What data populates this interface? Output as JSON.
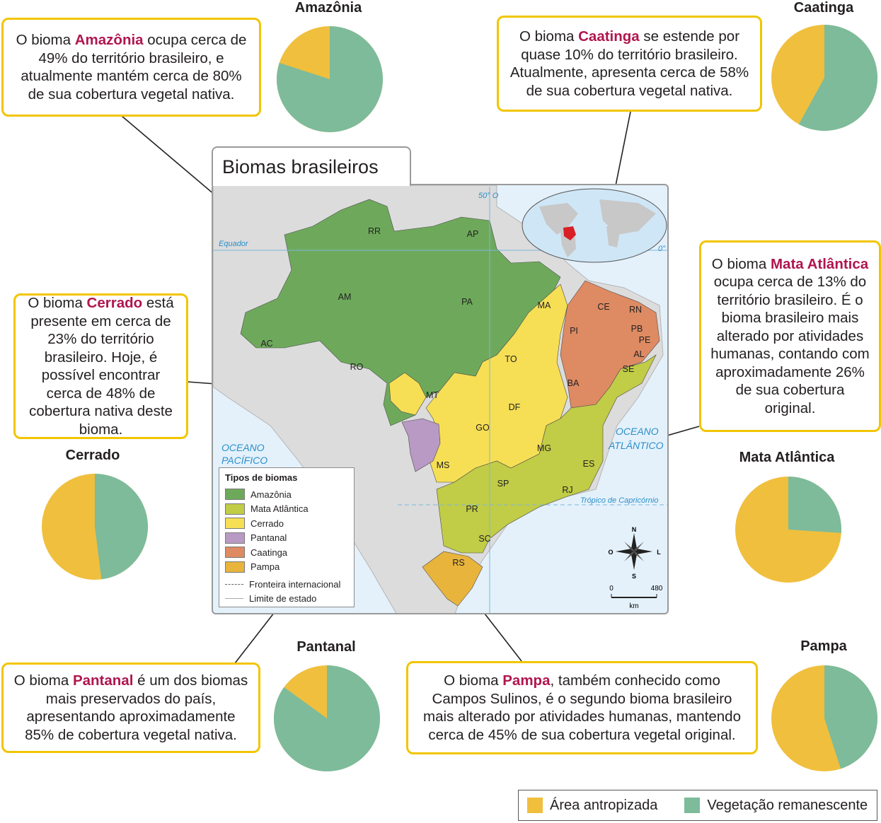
{
  "colors": {
    "antropizada": "#f0bf3d",
    "remanescente": "#7dbb9b",
    "amazonia": "#6ea95b",
    "mata_atlantica": "#c1cc47",
    "cerrado": "#f6df55",
    "pantanal": "#b99ac4",
    "caatinga": "#de8a63",
    "pampa": "#e8b43c",
    "callout_border": "#f2c500",
    "keyword": "#b0164e",
    "ocean": "#e4f1fb",
    "land": "#dcdcdc"
  },
  "map": {
    "title": "Biomas brasileiros",
    "ocean_atlantic": [
      "OCEANO",
      "ATLÂNTICO"
    ],
    "ocean_pacific": [
      "OCEANO",
      "PACÍFICO"
    ],
    "equator": "Equador",
    "meridian": "50° O",
    "zero": "0°",
    "tropic": "Trópico de Capricórnio",
    "states": [
      "RR",
      "AP",
      "AM",
      "PA",
      "MA",
      "CE",
      "RN",
      "PB",
      "PE",
      "AL",
      "SE",
      "PI",
      "BA",
      "TO",
      "AC",
      "RO",
      "MT",
      "DF",
      "GO",
      "MG",
      "ES",
      "MS",
      "SP",
      "RJ",
      "PR",
      "SC",
      "RS"
    ],
    "compass": {
      "n": "N",
      "s": "S",
      "l": "L",
      "o": "O"
    },
    "scale": {
      "zero": "0",
      "max": "480",
      "unit": "km"
    }
  },
  "legend": {
    "title": "Tipos de biomas",
    "items": [
      "Amazônia",
      "Mata Atlântica",
      "Cerrado",
      "Pantanal",
      "Caatinga",
      "Pampa"
    ],
    "lines": [
      "Fronteira internacional",
      "Limite de estado"
    ]
  },
  "bottom_legend": {
    "antropizada": "Área antropizada",
    "remanescente": "Vegetação remanescente"
  },
  "biomes": [
    {
      "name": "Amazônia",
      "remaining_pct": 80,
      "text": {
        "pre": "O bioma ",
        "kw": "Amazônia",
        "post": " ocupa cerca de 49% do território brasileiro, e atualmente mantém cerca de 80% de sua cobertura vegetal nativa."
      }
    },
    {
      "name": "Caatinga",
      "remaining_pct": 58,
      "text": {
        "pre": "O bioma ",
        "kw": "Caatinga",
        "post": " se estende por quase 10% do território brasileiro. Atualmente, apresenta cerca de 58% de sua cobertura vegetal nativa."
      }
    },
    {
      "name": "Cerrado",
      "remaining_pct": 48,
      "text": {
        "pre": "O bioma ",
        "kw": "Cerrado",
        "post": " está presente em cerca de 23% do território brasileiro. Hoje, é possível encontrar cerca de 48% de cobertura nativa deste bioma."
      }
    },
    {
      "name": "Mata Atlântica",
      "remaining_pct": 26,
      "text": {
        "pre": "O bioma ",
        "kw": "Mata Atlântica",
        "post": " ocupa cerca de 13% do território brasileiro. É o bioma brasileiro mais alterado por atividades humanas, contando com aproximadamente 26% de sua cobertura original."
      }
    },
    {
      "name": "Pantanal",
      "remaining_pct": 85,
      "text": {
        "pre": "O bioma ",
        "kw": "Pantanal",
        "post": " é um dos biomas mais preservados do país, apresentando aproximadamente 85% de cobertura vegetal nativa."
      }
    },
    {
      "name": "Pampa",
      "remaining_pct": 45,
      "text": {
        "pre": "O bioma ",
        "kw": "Pampa",
        "post": ", também conhecido como Campos Sulinos, é o segundo bioma brasileiro mais alterado por atividades humanas, mantendo cerca de 45% de sua cobertura vegetal original."
      }
    }
  ]
}
